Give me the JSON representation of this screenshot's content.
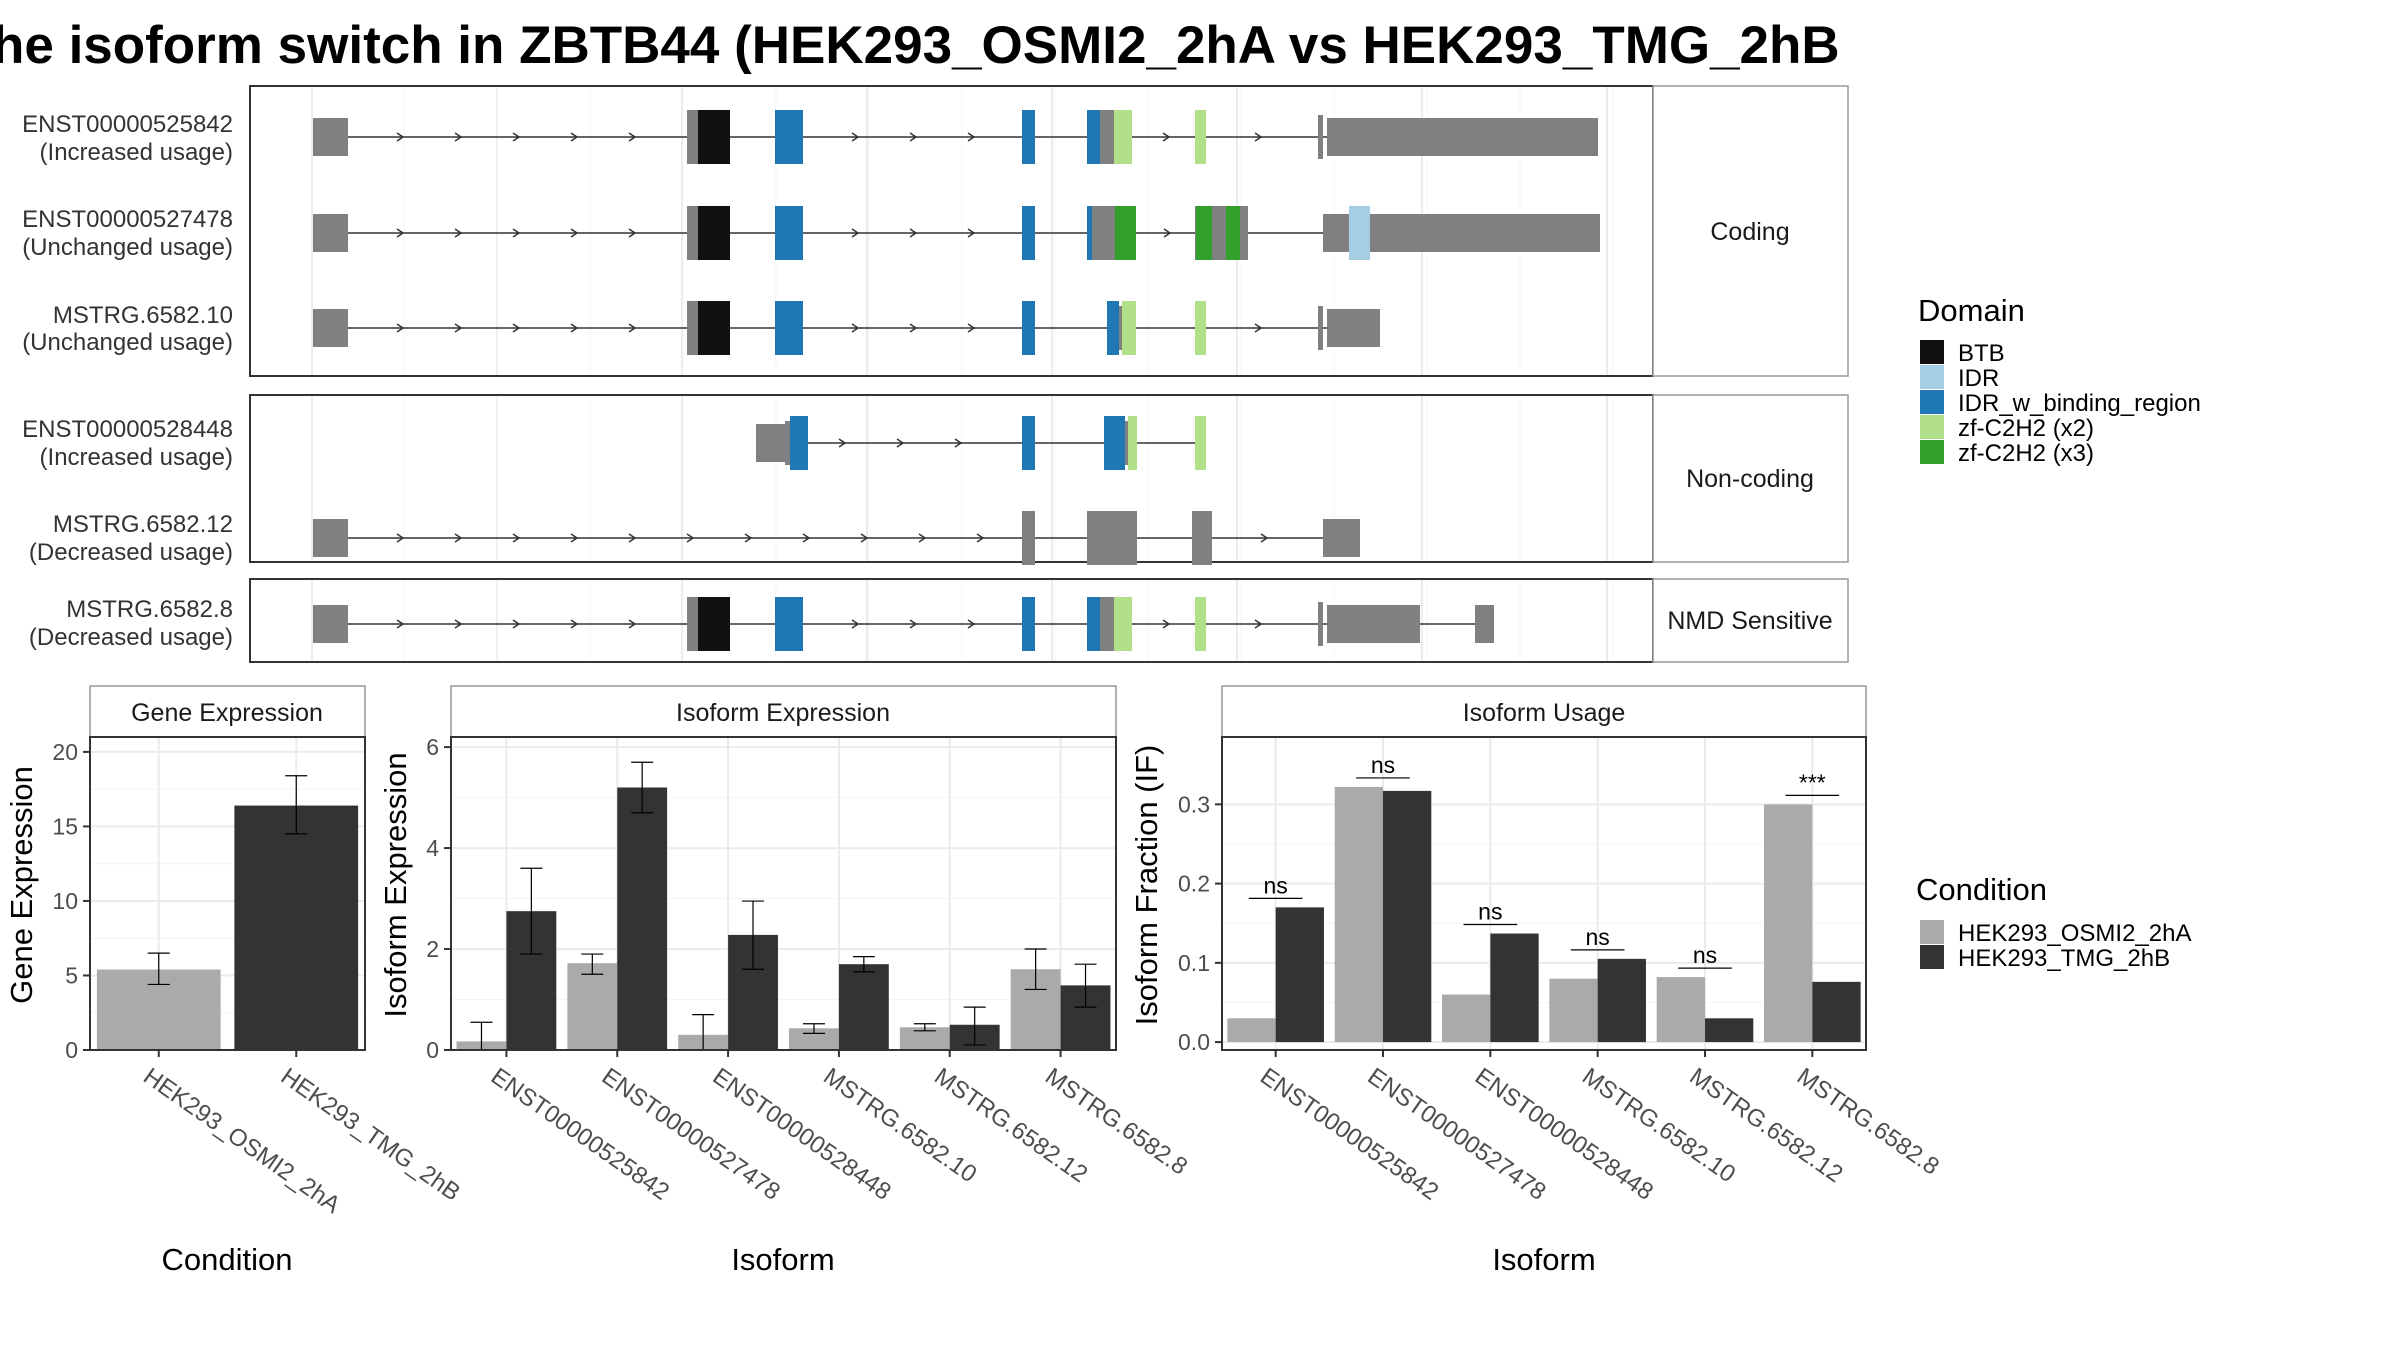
{
  "title": "he isoform switch in ZBTB44 (HEK293_OSMI2_2hA vs HEK293_TMG_2hB",
  "colors": {
    "exon": "#808080",
    "BTB": "#111111",
    "IDR": "#A6CEE3",
    "IDR_w_binding_region": "#1F78B4",
    "zf_x2": "#B2DF8A",
    "zf_x3": "#33A02C",
    "cond1": "#AAAAAA",
    "cond2": "#333333"
  },
  "transcript_panel": {
    "groups": [
      {
        "label": "Coding",
        "isoforms": [
          {
            "name": "ENST00000525842",
            "usage": "(Increased usage)"
          },
          {
            "name": "ENST00000527478",
            "usage": "(Unchanged usage)"
          },
          {
            "name": "MSTRG.6582.10",
            "usage": "(Unchanged usage)"
          }
        ]
      },
      {
        "label": "Non-coding",
        "isoforms": [
          {
            "name": "ENST00000528448",
            "usage": "(Increased usage)"
          },
          {
            "name": "MSTRG.6582.12",
            "usage": "(Decreased usage)"
          }
        ]
      },
      {
        "label": "NMD Sensitive",
        "isoforms": [
          {
            "name": "MSTRG.6582.8",
            "usage": "(Decreased usage)"
          }
        ]
      }
    ]
  },
  "legend_domain": {
    "title": "Domain",
    "items": [
      {
        "label": "BTB",
        "color": "#111111"
      },
      {
        "label": "IDR",
        "color": "#A6CEE3"
      },
      {
        "label": "IDR_w_binding_region",
        "color": "#1F78B4"
      },
      {
        "label": "zf-C2H2 (x2)",
        "color": "#B2DF8A"
      },
      {
        "label": "zf-C2H2 (x3)",
        "color": "#33A02C"
      }
    ]
  },
  "legend_condition": {
    "title": "Condition",
    "items": [
      {
        "label": "HEK293_OSMI2_2hA",
        "color": "#AAAAAA"
      },
      {
        "label": "HEK293_TMG_2hB",
        "color": "#333333"
      }
    ]
  },
  "chart_data": [
    {
      "type": "bar",
      "title": "Gene Expression",
      "xlabel": "Condition",
      "ylabel": "Gene Expression",
      "ylim": [
        0,
        21
      ],
      "yticks": [
        0,
        5,
        10,
        15,
        20
      ],
      "categories": [
        "HEK293_OSMI2_2hA",
        "HEK293_TMG_2hB"
      ],
      "values": [
        5.4,
        16.4
      ],
      "errors": [
        [
          4.4,
          6.5
        ],
        [
          14.5,
          18.4
        ]
      ]
    },
    {
      "type": "bar",
      "title": "Isoform Expression",
      "xlabel": "Isoform",
      "ylabel": "Isoform Expression",
      "ylim": [
        0,
        6.2
      ],
      "yticks": [
        0,
        2,
        4,
        6
      ],
      "categories": [
        "ENST00000525842",
        "ENST00000527478",
        "ENST00000528448",
        "MSTRG.6582.10",
        "MSTRG.6582.12",
        "MSTRG.6582.8"
      ],
      "series": [
        {
          "name": "HEK293_OSMI2_2hA",
          "values": [
            0.17,
            1.72,
            0.3,
            0.43,
            0.45,
            1.6
          ],
          "errors": [
            [
              0,
              0.55
            ],
            [
              1.5,
              1.9
            ],
            [
              0,
              0.7
            ],
            [
              0.33,
              0.52
            ],
            [
              0.38,
              0.52
            ],
            [
              1.2,
              2.0
            ]
          ]
        },
        {
          "name": "HEK293_TMG_2hB",
          "values": [
            2.75,
            5.2,
            2.28,
            1.7,
            0.5,
            1.28
          ],
          "errors": [
            [
              1.9,
              3.6
            ],
            [
              4.7,
              5.7
            ],
            [
              1.6,
              2.95
            ],
            [
              1.55,
              1.85
            ],
            [
              0.1,
              0.85
            ],
            [
              0.85,
              1.7
            ]
          ]
        }
      ]
    },
    {
      "type": "bar",
      "title": "Isoform Usage",
      "xlabel": "Isoform",
      "ylabel": "Isoform Fraction (IF)",
      "ylim": [
        -0.01,
        0.385
      ],
      "yticks": [
        0.0,
        0.1,
        0.2,
        0.3
      ],
      "categories": [
        "ENST00000525842",
        "ENST00000527478",
        "ENST00000528448",
        "MSTRG.6582.10",
        "MSTRG.6582.12",
        "MSTRG.6582.8"
      ],
      "series": [
        {
          "name": "HEK293_OSMI2_2hA",
          "values": [
            0.03,
            0.322,
            0.06,
            0.08,
            0.082,
            0.3
          ]
        },
        {
          "name": "HEK293_TMG_2hB",
          "values": [
            0.17,
            0.317,
            0.137,
            0.105,
            0.03,
            0.076
          ]
        }
      ],
      "significance": [
        "ns",
        "ns",
        "ns",
        "ns",
        "ns",
        "***"
      ]
    }
  ]
}
